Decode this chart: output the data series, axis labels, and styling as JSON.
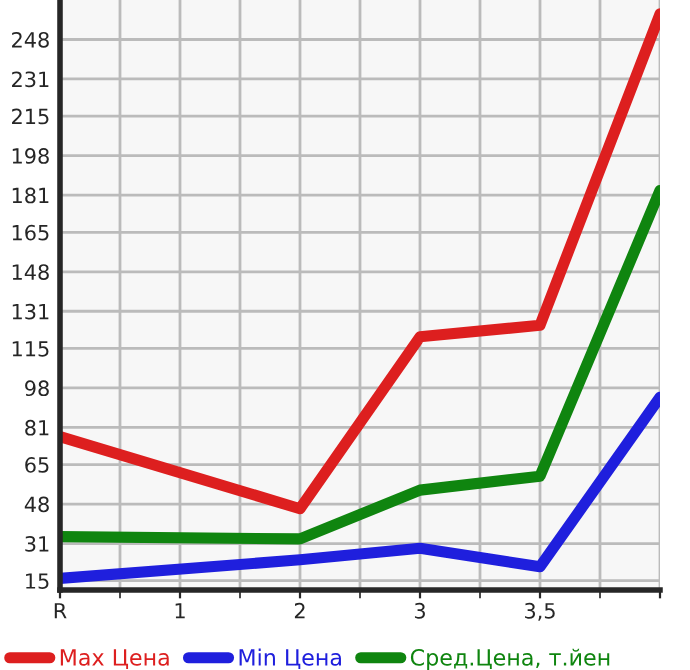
{
  "chart_data": {
    "type": "line",
    "categories": [
      "R",
      "1",
      "2",
      "3",
      "3,5",
      null
    ],
    "series": [
      {
        "name": "Max Цена",
        "color": "#dd1f1f",
        "values": [
          77,
          null,
          46,
          120,
          125,
          259
        ]
      },
      {
        "name": "Min Цена",
        "color": "#1f1fdd",
        "values": [
          16,
          null,
          24,
          29,
          21,
          94
        ]
      },
      {
        "name": "Сред.Цена, т.йен",
        "color": "#0f850f",
        "values": [
          34,
          null,
          33,
          54,
          60,
          183
        ]
      }
    ],
    "ylim": [
      11,
      265
    ],
    "yticks": [
      15,
      31,
      48,
      65,
      81,
      98,
      115,
      131,
      148,
      165,
      181,
      198,
      215,
      231,
      248
    ],
    "grid": true,
    "legend": "bottom",
    "marker": "none",
    "line_style": "solid"
  }
}
